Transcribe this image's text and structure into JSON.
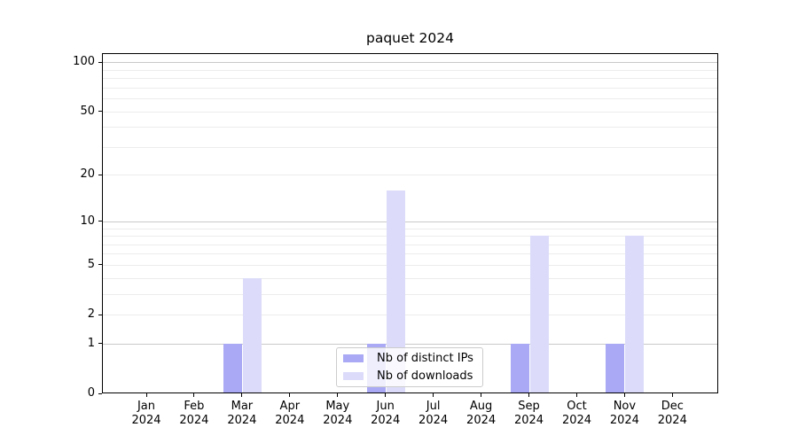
{
  "chart_data": {
    "type": "bar",
    "title": "paquet 2024",
    "categories": [
      {
        "month": "Jan",
        "year": "2024"
      },
      {
        "month": "Feb",
        "year": "2024"
      },
      {
        "month": "Mar",
        "year": "2024"
      },
      {
        "month": "Apr",
        "year": "2024"
      },
      {
        "month": "May",
        "year": "2024"
      },
      {
        "month": "Jun",
        "year": "2024"
      },
      {
        "month": "Jul",
        "year": "2024"
      },
      {
        "month": "Aug",
        "year": "2024"
      },
      {
        "month": "Sep",
        "year": "2024"
      },
      {
        "month": "Oct",
        "year": "2024"
      },
      {
        "month": "Nov",
        "year": "2024"
      },
      {
        "month": "Dec",
        "year": "2024"
      }
    ],
    "series": [
      {
        "name": "Nb of distinct IPs",
        "color": "#a9a9f5",
        "values": [
          0,
          0,
          1,
          0,
          0,
          1,
          0,
          0,
          1,
          0,
          1,
          0
        ]
      },
      {
        "name": "Nb of downloads",
        "color": "#dcdcfa",
        "values": [
          0,
          0,
          4,
          0,
          0,
          16,
          0,
          0,
          8,
          0,
          8,
          0
        ]
      }
    ],
    "yscale": "log1p",
    "ylim": [
      0,
      113.6
    ],
    "yticks_labeled": [
      0,
      1,
      2,
      5,
      10,
      20,
      50,
      100
    ],
    "gridlines_major": [
      1,
      10,
      100
    ],
    "gridlines_minor": [
      2,
      3,
      4,
      5,
      6,
      7,
      8,
      9,
      20,
      30,
      40,
      50,
      60,
      70,
      80,
      90
    ],
    "grid": true,
    "legend_position": "inside lower center",
    "xlabel": "",
    "ylabel": ""
  }
}
